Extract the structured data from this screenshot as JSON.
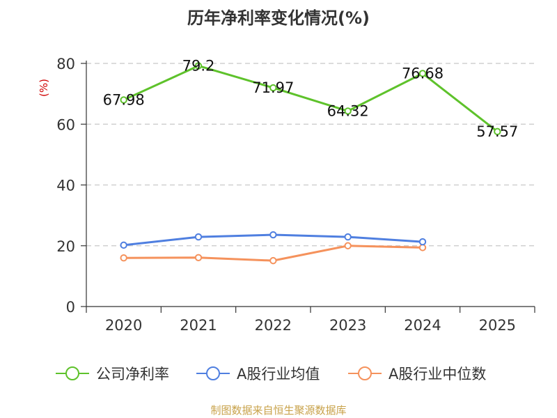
{
  "title": "历年净利率变化情况(%)",
  "source": "制图数据来自恒生聚源数据库",
  "chart_data": {
    "type": "line",
    "title": "历年净利率变化情况(%)",
    "ylabel": "(%)",
    "categories": [
      "2020",
      "2021",
      "2022",
      "2023",
      "2024",
      "2025"
    ],
    "ylim": [
      0,
      80
    ],
    "yticks": [
      0,
      20,
      40,
      60,
      80
    ],
    "grid": true,
    "legend_position": "bottom",
    "series": [
      {
        "name": "公司净利率",
        "color": "#5ec22b",
        "show_labels": true,
        "values": [
          67.98,
          79.2,
          71.97,
          64.32,
          76.68,
          57.57
        ],
        "labels": [
          "67.98",
          "79.2",
          "71.97",
          "64.32",
          "76.68",
          "57.57"
        ]
      },
      {
        "name": "A股行业均值",
        "color": "#4f7fe0",
        "show_labels": false,
        "values": [
          20.2,
          22.9,
          23.6,
          22.9,
          21.3,
          null
        ]
      },
      {
        "name": "A股行业中位数",
        "color": "#f5925c",
        "show_labels": false,
        "values": [
          16.0,
          16.1,
          15.1,
          20.0,
          19.4,
          null
        ]
      }
    ]
  }
}
